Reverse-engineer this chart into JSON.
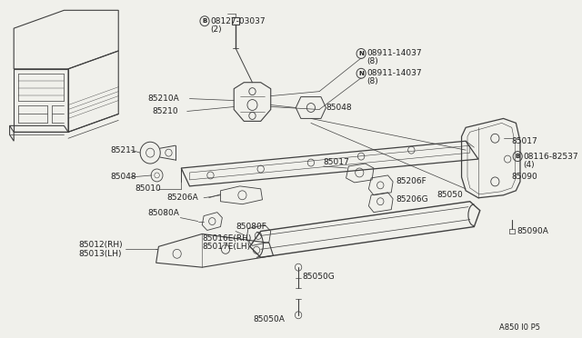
{
  "bg_color": "#f0f0eb",
  "line_color": "#404040",
  "text_color": "#202020",
  "footer": "A850 I0 P5",
  "parts": {
    "bolt_label": "B08127-03037",
    "bolt_qty": "(2)",
    "nut1_label": "N08911-14037",
    "nut1_qty": "(8)",
    "nut2_label": "N08911-14037",
    "nut2_qty": "(8)",
    "bolt2_label": "B08116-82537",
    "bolt2_qty": "(4)"
  }
}
